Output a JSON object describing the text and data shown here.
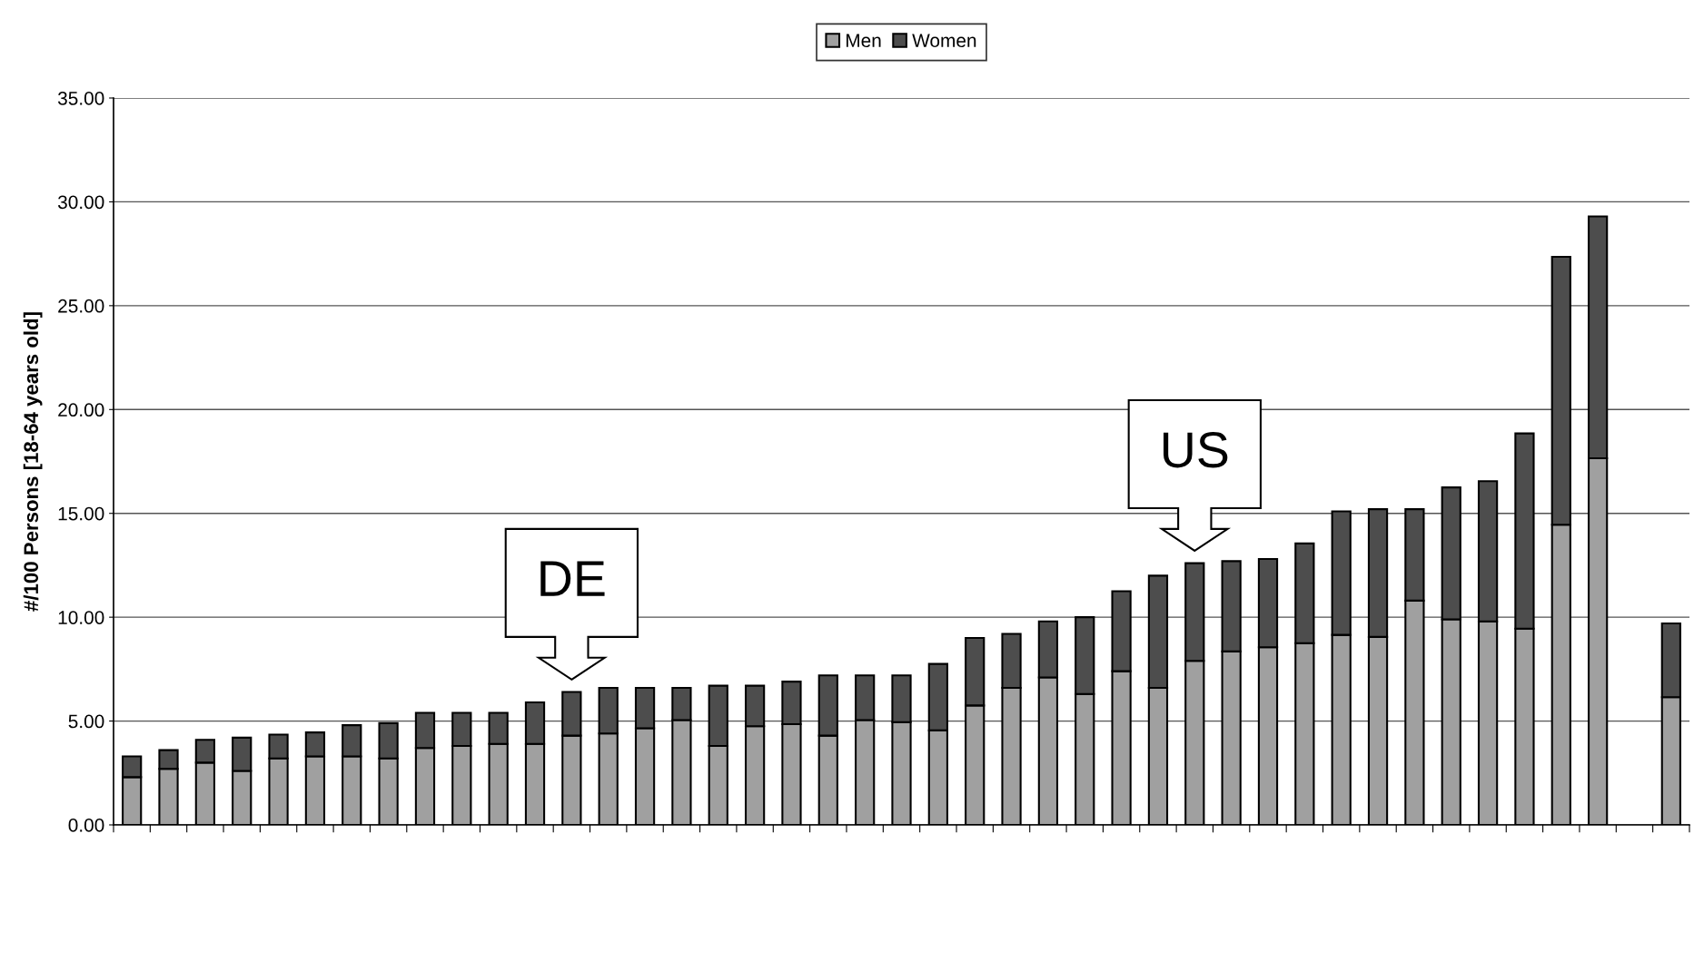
{
  "chart_data": {
    "type": "bar",
    "stacked": true,
    "ylabel": "#/100 Persons [18-64 years old]",
    "categories": [
      null,
      null,
      null,
      null,
      null,
      null,
      null,
      null,
      null,
      null,
      null,
      null,
      null,
      null,
      null,
      null,
      null,
      null,
      null,
      null,
      null,
      null,
      null,
      null,
      null,
      null,
      null,
      null,
      null,
      null,
      null,
      null,
      null,
      null,
      null,
      null,
      null,
      null,
      null,
      null,
      null,
      null,
      null
    ],
    "series": [
      {
        "name": "Men",
        "color": "#a0a0a0",
        "values": [
          2.3,
          2.7,
          3.0,
          2.6,
          3.2,
          3.3,
          3.3,
          3.2,
          3.7,
          3.8,
          3.9,
          3.9,
          4.3,
          4.4,
          4.65,
          5.05,
          3.8,
          4.75,
          4.85,
          4.3,
          5.05,
          4.95,
          4.55,
          5.75,
          6.6,
          7.1,
          6.3,
          7.4,
          6.6,
          7.9,
          8.35,
          8.55,
          8.75,
          9.15,
          9.05,
          10.8,
          9.9,
          9.8,
          9.45,
          14.45,
          17.65,
          null,
          6.15
        ]
      },
      {
        "name": "Women",
        "color": "#4d4d4d",
        "values": [
          1.0,
          0.9,
          1.1,
          1.6,
          1.15,
          1.15,
          1.5,
          1.7,
          1.7,
          1.6,
          1.5,
          2.0,
          2.1,
          2.2,
          1.95,
          1.55,
          2.9,
          1.95,
          2.05,
          2.9,
          2.15,
          2.25,
          3.2,
          3.25,
          2.6,
          2.7,
          3.7,
          3.85,
          5.4,
          4.7,
          4.35,
          4.25,
          4.8,
          5.95,
          6.15,
          4.4,
          6.35,
          6.75,
          9.4,
          12.9,
          11.65,
          null,
          3.55
        ]
      }
    ],
    "ylim": [
      0,
      35
    ],
    "yticks": [
      {
        "value": 0,
        "label": "0.00"
      },
      {
        "value": 5,
        "label": "5.00"
      },
      {
        "value": 10,
        "label": "10.00"
      },
      {
        "value": 15,
        "label": "15.00"
      },
      {
        "value": 20,
        "label": "20.00"
      },
      {
        "value": 25,
        "label": "25.00"
      },
      {
        "value": 30,
        "label": "30.00"
      },
      {
        "value": 35,
        "label": "35.00"
      }
    ],
    "grid": "y",
    "legend": "top",
    "annotations": [
      {
        "text": "DE",
        "y": 6.4
      },
      {
        "text": "US",
        "y": 12.6
      }
    ]
  }
}
